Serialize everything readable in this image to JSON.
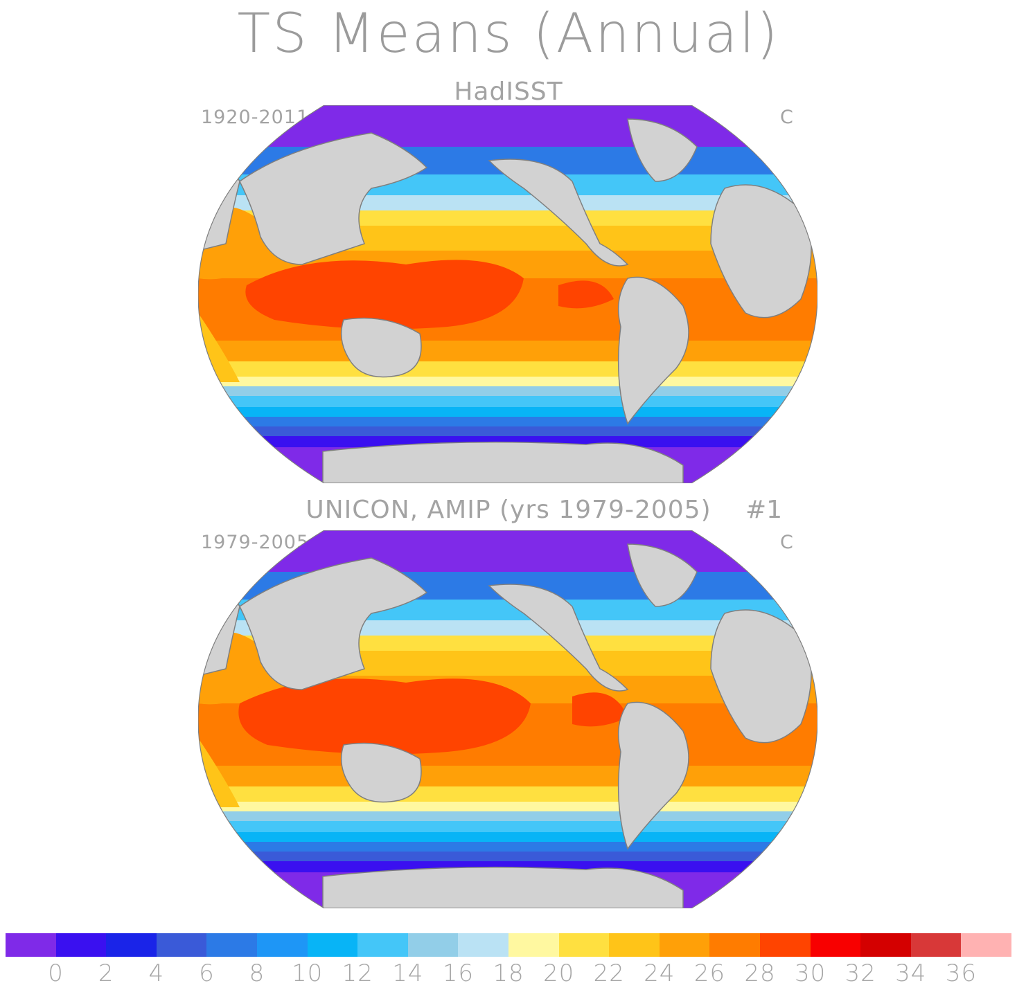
{
  "title": "TS Means (Annual)",
  "panels": [
    {
      "title": "HadISST",
      "years": "1920-2011",
      "units": "C",
      "run": ""
    },
    {
      "title": "UNICON, AMIP (yrs 1979-2005)",
      "years": "1979-2005",
      "units": "C",
      "run": "#1"
    }
  ],
  "colorbar": {
    "colors": [
      "#7f2ae8",
      "#3a10f0",
      "#1a24e8",
      "#3a5ad8",
      "#2c7ae6",
      "#1e96f6",
      "#08b4f6",
      "#44c6f8",
      "#92cee8",
      "#bae2f4",
      "#fff8a0",
      "#ffe040",
      "#ffc418",
      "#ffa008",
      "#ff7c00",
      "#ff4400",
      "#f80000",
      "#d40000",
      "#d83838",
      "#ffb2b2"
    ],
    "labels": [
      "0",
      "2",
      "4",
      "6",
      "8",
      "10",
      "12",
      "14",
      "16",
      "18",
      "20",
      "22",
      "24",
      "26",
      "28",
      "30",
      "32",
      "34",
      "36"
    ]
  },
  "map_colors": {
    "land": "#d2d2d2",
    "coast": "#7f7f7f",
    "missing": "#ffffff"
  }
}
